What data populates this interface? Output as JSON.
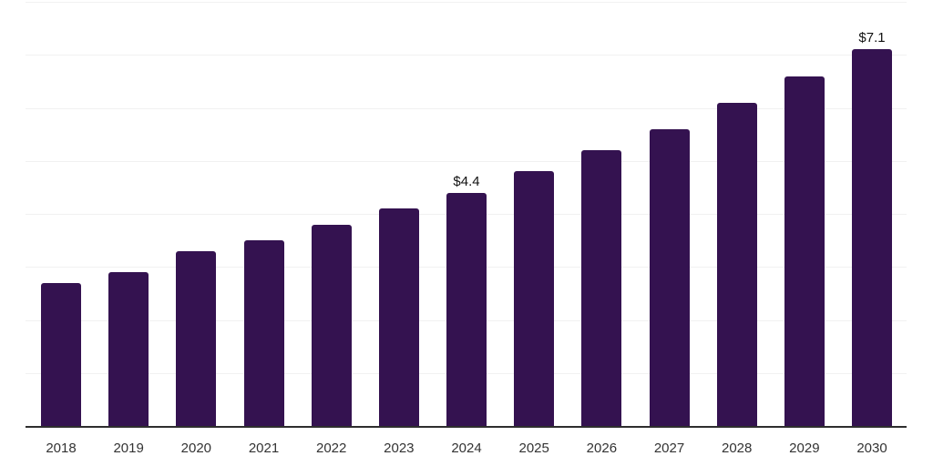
{
  "chart_data": {
    "type": "bar",
    "title": "",
    "xlabel": "",
    "ylabel": "",
    "categories": [
      "2018",
      "2019",
      "2020",
      "2021",
      "2022",
      "2023",
      "2024",
      "2025",
      "2026",
      "2027",
      "2028",
      "2029",
      "2030"
    ],
    "values": [
      2.7,
      2.9,
      3.3,
      3.5,
      3.8,
      4.1,
      4.4,
      4.8,
      5.2,
      5.6,
      6.1,
      6.6,
      7.1
    ],
    "data_labels": [
      null,
      null,
      null,
      null,
      null,
      null,
      "$4.4",
      null,
      null,
      null,
      null,
      null,
      "$7.1"
    ],
    "ylim": [
      0,
      8
    ],
    "grid": "horizontal",
    "gridline_interval": 1,
    "legend": "none",
    "colors": {
      "bar": "#341250",
      "gridline": "#f1f1f1",
      "axis_line": "#2e2e2e",
      "tick_label": "#333333",
      "data_label": "#111111",
      "background": "#ffffff"
    }
  }
}
